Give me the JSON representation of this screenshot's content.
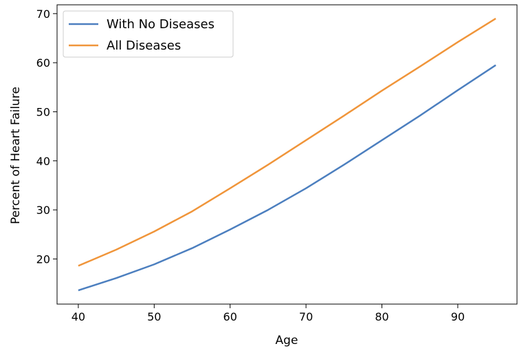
{
  "chart_data": {
    "type": "line",
    "title": "",
    "xlabel": "Age",
    "ylabel": "Percent of Heart Failure",
    "xlim": [
      37.2,
      97.8
    ],
    "ylim": [
      10.8,
      71.8
    ],
    "xticks": [
      40,
      50,
      60,
      70,
      80,
      90
    ],
    "yticks": [
      20,
      30,
      40,
      50,
      60,
      70
    ],
    "grid": false,
    "legend_position": "upper-left",
    "series": [
      {
        "name": "With No Diseases",
        "color": "#4C7FBF",
        "x": [
          40,
          45,
          50,
          55,
          60,
          65,
          70,
          75,
          80,
          85,
          90,
          95
        ],
        "y": [
          13.6,
          16.1,
          18.9,
          22.2,
          26.0,
          30.0,
          34.4,
          39.2,
          44.2,
          49.2,
          54.4,
          59.5
        ]
      },
      {
        "name": "All Diseases",
        "color": "#F0953A",
        "x": [
          40,
          45,
          50,
          55,
          60,
          65,
          70,
          75,
          80,
          85,
          90,
          95
        ],
        "y": [
          18.6,
          21.9,
          25.6,
          29.7,
          34.4,
          39.2,
          44.2,
          49.2,
          54.3,
          59.2,
          64.2,
          69.0
        ]
      }
    ]
  }
}
